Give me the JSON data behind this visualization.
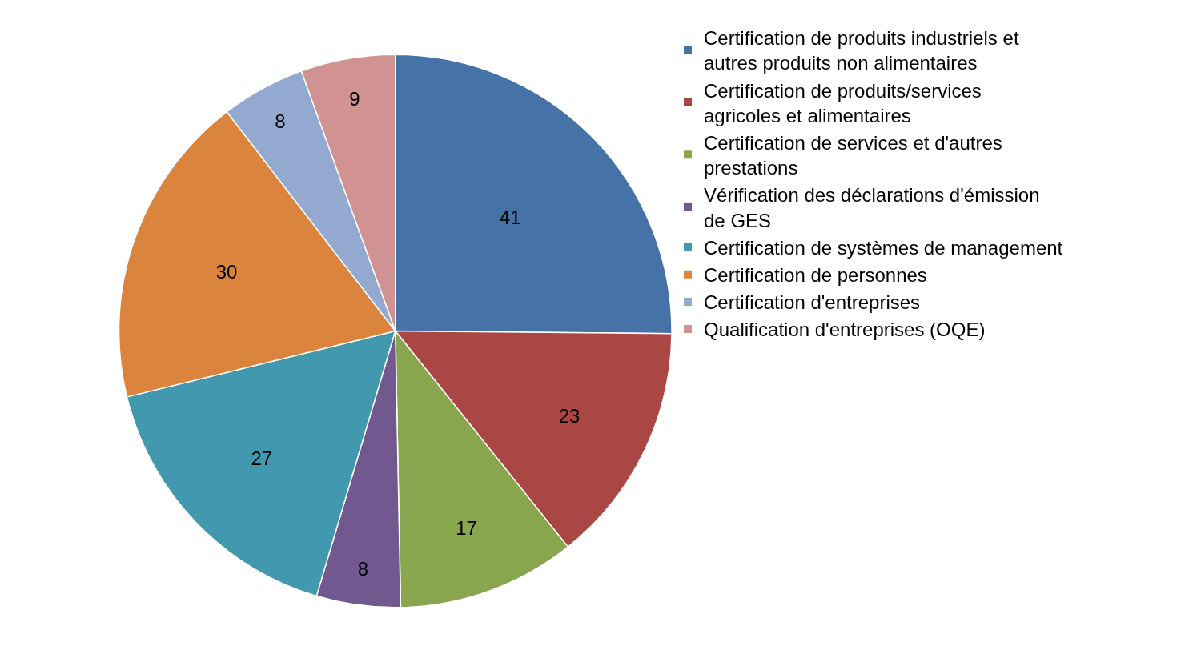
{
  "chart_data": {
    "type": "pie",
    "categories": [
      "Certification de produits industriels et autres produits non alimentaires",
      "Certification de produits/services agricoles et alimentaires",
      "Certification de services et d'autres prestations",
      "Vérification des déclarations d'émission de GES",
      "Certification de systèmes de management",
      "Certification de personnes",
      "Certification d'entreprises",
      "Qualification d'entreprises (OQE)"
    ],
    "values": [
      41,
      23,
      17,
      8,
      27,
      30,
      8,
      9
    ],
    "colors": [
      "#4572a7",
      "#aa4643",
      "#89a54e",
      "#71588f",
      "#4198af",
      "#db843d",
      "#93a9cf",
      "#d19392"
    ],
    "data_labels": true,
    "legend": "right"
  }
}
